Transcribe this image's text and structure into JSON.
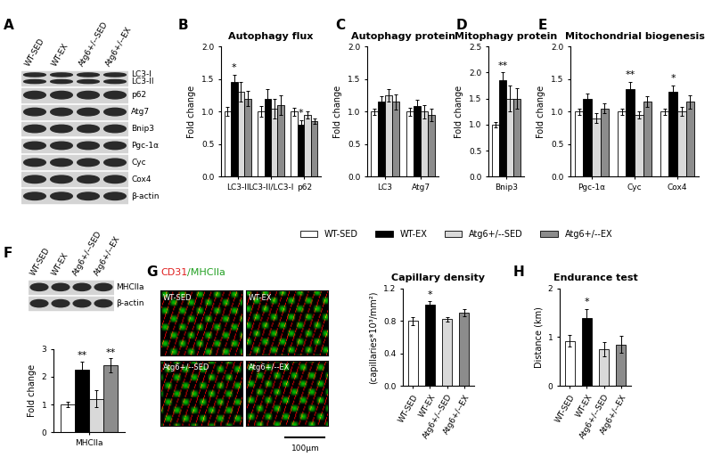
{
  "panel_letters": [
    "A",
    "B",
    "C",
    "D",
    "E",
    "F",
    "G",
    "H"
  ],
  "blots": [
    {
      "lanes": [
        "WT-SED",
        "WT-EX",
        "Atg6+/--SED",
        "Atg6+/--EX"
      ],
      "rows": [
        [
          "LC3-I",
          "LC3-II"
        ],
        [
          "p62"
        ],
        [
          "Atg7"
        ],
        [
          "Bnip3"
        ],
        [
          "Pgc-1α"
        ],
        [
          "Cyc"
        ],
        [
          "Cox4"
        ],
        [
          "β-actin"
        ]
      ]
    },
    {
      "lanes": [
        "WT-SED",
        "WT-EX",
        "Atg6+/--SED",
        "Atg6+/--EX"
      ],
      "rows": [
        [
          "MHCIIa"
        ],
        [
          "β-actin"
        ]
      ]
    }
  ],
  "micrographs": {
    "title_parts": [
      {
        "text": "CD31",
        "color": "#e02020"
      },
      {
        "text": "/MHCIIa",
        "color": "#22a022"
      }
    ],
    "panels": [
      "WT-SED",
      "WT-EX",
      "Atg6+/--SED",
      "Atg6+/--EX"
    ],
    "scale_bar": "100μm"
  },
  "chart_data": [
    {
      "type": "bar",
      "title": "Autophagy flux",
      "y_label": "Fold change",
      "categories": [
        "LC3-II",
        "LC3-II/LC3-I",
        "p62"
      ],
      "series": [
        {
          "name": "WT-SED",
          "color": "#ffffff",
          "values": [
            1.0,
            1.0,
            1.0
          ],
          "errors": [
            0.07,
            0.08,
            0.06
          ]
        },
        {
          "name": "WT-EX",
          "color": "#000000",
          "values": [
            1.45,
            1.2,
            0.8
          ],
          "errors": [
            0.12,
            0.15,
            0.07
          ]
        },
        {
          "name": "Atg6+/--SED",
          "color": "#d9d9d9",
          "values": [
            1.3,
            1.05,
            0.95
          ],
          "errors": [
            0.15,
            0.15,
            0.05
          ]
        },
        {
          "name": "Atg6+/--EX",
          "color": "#8c8c8c",
          "values": [
            1.2,
            1.1,
            0.85
          ],
          "errors": [
            0.12,
            0.15,
            0.04
          ]
        }
      ],
      "ylim": [
        0,
        2.0
      ],
      "yticks": [
        {
          "value": 0,
          "label": "0.0"
        },
        {
          "value": 0.5,
          "label": "0.5"
        },
        {
          "value": 1.0,
          "label": "1.0"
        },
        {
          "value": 1.5,
          "label": "1.5"
        },
        {
          "value": 2.0,
          "label": "2.0"
        }
      ],
      "annotations": [
        {
          "text": "*",
          "category": "LC3-II",
          "series": "WT-EX"
        },
        {
          "text": "*",
          "category": "p62",
          "series": "WT-EX"
        }
      ],
      "legend": "lower center"
    },
    {
      "type": "bar",
      "title": "Autophagy protein",
      "y_label": "Fold change",
      "categories": [
        "LC3",
        "Atg7"
      ],
      "series": [
        {
          "name": "WT-SED",
          "color": "#ffffff",
          "values": [
            1.0,
            1.0
          ],
          "errors": [
            0.05,
            0.06
          ]
        },
        {
          "name": "WT-EX",
          "color": "#000000",
          "values": [
            1.15,
            1.08
          ],
          "errors": [
            0.08,
            0.1
          ]
        },
        {
          "name": "Atg6+/--SED",
          "color": "#d9d9d9",
          "values": [
            1.25,
            1.0
          ],
          "errors": [
            0.1,
            0.1
          ]
        },
        {
          "name": "Atg6+/--EX",
          "color": "#8c8c8c",
          "values": [
            1.15,
            0.95
          ],
          "errors": [
            0.12,
            0.1
          ]
        }
      ],
      "ylim": [
        0,
        2.0
      ],
      "yticks": [
        {
          "value": 0,
          "label": "0.0"
        },
        {
          "value": 0.5,
          "label": "0.5"
        },
        {
          "value": 1.0,
          "label": "1.0"
        },
        {
          "value": 1.5,
          "label": "1.5"
        },
        {
          "value": 2.0,
          "label": "2.0"
        }
      ],
      "annotations": []
    },
    {
      "type": "bar",
      "title": "Mitophagy protein",
      "y_label": "Fold change",
      "categories": [
        "Bnip3"
      ],
      "series": [
        {
          "name": "WT-SED",
          "color": "#ffffff",
          "values": [
            1.0
          ],
          "errors": [
            0.05
          ]
        },
        {
          "name": "WT-EX",
          "color": "#000000",
          "values": [
            1.85
          ],
          "errors": [
            0.15
          ]
        },
        {
          "name": "Atg6+/--SED",
          "color": "#d9d9d9",
          "values": [
            1.5
          ],
          "errors": [
            0.25
          ]
        },
        {
          "name": "Atg6+/--EX",
          "color": "#8c8c8c",
          "values": [
            1.5
          ],
          "errors": [
            0.2
          ]
        }
      ],
      "ylim": [
        0,
        2.5
      ],
      "yticks": [
        {
          "value": 0,
          "label": "0.0"
        },
        {
          "value": 0.5,
          "label": "0.5"
        },
        {
          "value": 1.0,
          "label": "1.0"
        },
        {
          "value": 1.5,
          "label": "1.5"
        },
        {
          "value": 2.0,
          "label": "2.0"
        },
        {
          "value": 2.5,
          "label": "2.5"
        }
      ],
      "annotations": [
        {
          "text": "**",
          "category": "Bnip3",
          "series": "WT-EX"
        }
      ]
    },
    {
      "type": "bar",
      "title": "Mitochondrial biogenesis",
      "y_label": "Fold change",
      "categories": [
        "Pgc-1α",
        "Cyc",
        "Cox4"
      ],
      "series": [
        {
          "name": "WT-SED",
          "color": "#ffffff",
          "values": [
            1.0,
            1.0,
            1.0
          ],
          "errors": [
            0.05,
            0.05,
            0.05
          ]
        },
        {
          "name": "WT-EX",
          "color": "#000000",
          "values": [
            1.2,
            1.35,
            1.3
          ],
          "errors": [
            0.08,
            0.1,
            0.1
          ]
        },
        {
          "name": "Atg6+/--SED",
          "color": "#d9d9d9",
          "values": [
            0.9,
            0.95,
            1.0
          ],
          "errors": [
            0.07,
            0.06,
            0.07
          ]
        },
        {
          "name": "Atg6+/--EX",
          "color": "#8c8c8c",
          "values": [
            1.05,
            1.15,
            1.15
          ],
          "errors": [
            0.08,
            0.08,
            0.1
          ]
        }
      ],
      "ylim": [
        0,
        2.0
      ],
      "yticks": [
        {
          "value": 0,
          "label": "0.0"
        },
        {
          "value": 0.5,
          "label": "0.5"
        },
        {
          "value": 1.0,
          "label": "1.0"
        },
        {
          "value": 1.5,
          "label": "1.5"
        },
        {
          "value": 2.0,
          "label": "2.0"
        }
      ],
      "annotations": [
        {
          "text": "**",
          "category": "Cyc",
          "series": "WT-EX"
        },
        {
          "text": "*",
          "category": "Cox4",
          "series": "WT-EX"
        }
      ]
    },
    {
      "type": "bar",
      "y_label": "Fold change",
      "categories": [
        "MHCIIa"
      ],
      "series": [
        {
          "name": "WT-SED",
          "color": "#ffffff",
          "values": [
            1.0
          ],
          "errors": [
            0.1
          ]
        },
        {
          "name": "WT-EX",
          "color": "#000000",
          "values": [
            2.25
          ],
          "errors": [
            0.3
          ]
        },
        {
          "name": "Atg6+/--SED",
          "color": "#d9d9d9",
          "values": [
            1.2
          ],
          "errors": [
            0.3
          ]
        },
        {
          "name": "Atg6+/--EX",
          "color": "#8c8c8c",
          "values": [
            2.4
          ],
          "errors": [
            0.25
          ]
        }
      ],
      "ylim": [
        0,
        3
      ],
      "yticks": [
        0,
        1,
        2,
        3
      ],
      "annotations": [
        {
          "text": "**",
          "category": "MHCIIa",
          "series": "WT-EX"
        },
        {
          "text": "**",
          "category": "MHCIIa",
          "series": "Atg6+/--EX"
        }
      ]
    },
    {
      "type": "bar",
      "title": "Capillary density",
      "y_label": "(capillaries*10³/mm²)",
      "categories": [
        "WT-SED",
        "WT-EX",
        "Atg6+/--SED",
        "Atg6+/--EX"
      ],
      "values": [
        0.8,
        1.0,
        0.82,
        0.9
      ],
      "errors": [
        0.05,
        0.04,
        0.03,
        0.04
      ],
      "colors": [
        "#ffffff",
        "#000000",
        "#d9d9d9",
        "#8c8c8c"
      ],
      "ylim": [
        0,
        1.2
      ],
      "yticks": [
        {
          "value": 0,
          "label": "0.0"
        },
        {
          "value": 0.4,
          "label": "0.4"
        },
        {
          "value": 0.8,
          "label": "0.8"
        },
        {
          "value": 1.2,
          "label": "1.2"
        }
      ],
      "annotations": [
        {
          "text": "*",
          "category": "WT-EX"
        }
      ]
    },
    {
      "type": "bar",
      "title": "Endurance test",
      "y_label": "Distance (km)",
      "categories": [
        "WT-SED",
        "WT-EX",
        "Atg6+/--SED",
        "Atg6+/--EX"
      ],
      "values": [
        0.92,
        1.4,
        0.75,
        0.85
      ],
      "errors": [
        0.12,
        0.18,
        0.15,
        0.17
      ],
      "colors": [
        "#ffffff",
        "#000000",
        "#d9d9d9",
        "#8c8c8c"
      ],
      "ylim": [
        0,
        2
      ],
      "yticks": [
        0,
        1,
        2
      ],
      "annotations": [
        {
          "text": "*",
          "category": "WT-EX"
        }
      ]
    }
  ]
}
